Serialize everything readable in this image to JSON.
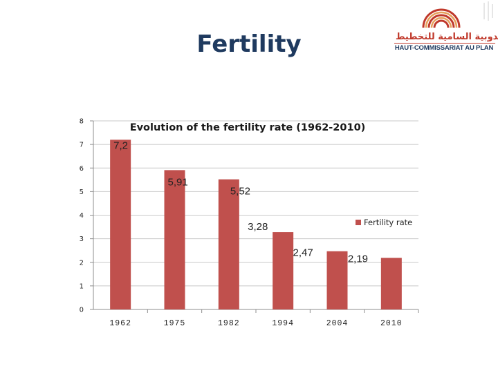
{
  "slide": {
    "title": "Fertility"
  },
  "logo": {
    "arabic_text": "المندوبية السامية للتخطيط",
    "french_text": "HAUT-COMMISSARIAT AU PLAN"
  },
  "colors": {
    "bar": "#c0504d",
    "title": "#1f3a5f",
    "grid": "#c8c8c8",
    "axis": "#8c8c8c"
  },
  "chart_data": {
    "type": "bar",
    "title": "Evolution of the fertility rate (1962-2010)",
    "categories": [
      "1962",
      "1975",
      "1982",
      "1994",
      "2004",
      "2010"
    ],
    "series": [
      {
        "name": "Fertility rate",
        "values": [
          7.2,
          5.91,
          5.52,
          3.28,
          2.47,
          2.19
        ]
      }
    ],
    "data_labels": [
      "7,2",
      "5,91",
      "5,52",
      "3,28",
      "2,47",
      "2,19"
    ],
    "yticks": [
      "0",
      "1",
      "2",
      "3",
      "4",
      "5",
      "6",
      "7",
      "8"
    ],
    "ylim": [
      0,
      8
    ],
    "grid": true,
    "legend_position": "right",
    "xlabel": "",
    "ylabel": ""
  }
}
